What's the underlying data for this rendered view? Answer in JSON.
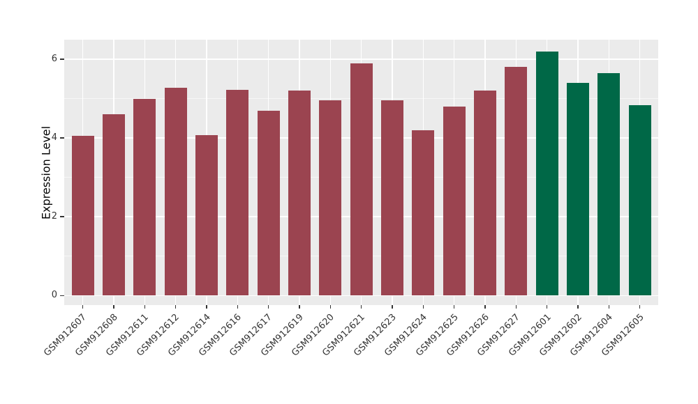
{
  "styles": {
    "figure_background": "#ffffff",
    "panel_background": "#ebebeb",
    "grid_color": "#ffffff",
    "axis_text_color": "#333333",
    "axis_title_color": "#000000",
    "tick_mark_color": "#333333"
  },
  "chart_data": {
    "type": "bar",
    "title": "",
    "xlabel": "",
    "ylabel": "Expression Level",
    "ylim": [
      0,
      6.5
    ],
    "yticks": [
      0,
      2,
      4,
      6
    ],
    "grid": "major and minor horizontal white gridlines, vertical white gridline at each category, on grey panel",
    "legend_position": "none",
    "categories": [
      "GSM912607",
      "GSM912608",
      "GSM912611",
      "GSM912612",
      "GSM912614",
      "GSM912616",
      "GSM912617",
      "GSM912619",
      "GSM912620",
      "GSM912621",
      "GSM912623",
      "GSM912624",
      "GSM912625",
      "GSM912626",
      "GSM912627",
      "GSM912601",
      "GSM912602",
      "GSM912604",
      "GSM912605"
    ],
    "values": [
      4.05,
      4.6,
      5.0,
      5.28,
      4.08,
      5.22,
      4.7,
      5.2,
      4.95,
      5.9,
      4.95,
      4.2,
      4.8,
      5.2,
      5.8,
      6.2,
      5.4,
      5.65,
      4.83
    ],
    "bar_groups": [
      "maroon",
      "maroon",
      "maroon",
      "maroon",
      "maroon",
      "maroon",
      "maroon",
      "maroon",
      "maroon",
      "maroon",
      "maroon",
      "maroon",
      "maroon",
      "maroon",
      "maroon",
      "green",
      "green",
      "green",
      "green"
    ],
    "group_colors": {
      "maroon": "#9b4450",
      "green": "#006847"
    }
  }
}
